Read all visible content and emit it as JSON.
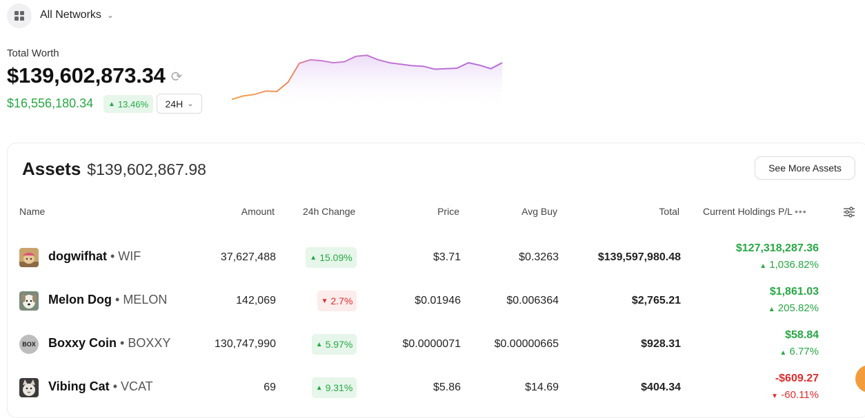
{
  "network": {
    "label": "All Networks"
  },
  "total_worth": {
    "label": "Total Worth",
    "value": "$139,602,873.34",
    "change_value": "$16,556,180.34",
    "change_pct": "13.46%",
    "period": "24H"
  },
  "sparkline": {
    "values": [
      0.05,
      0.12,
      0.15,
      0.22,
      0.21,
      0.4,
      0.78,
      0.85,
      0.83,
      0.79,
      0.81,
      0.92,
      0.94,
      0.85,
      0.79,
      0.76,
      0.73,
      0.72,
      0.66,
      0.67,
      0.68,
      0.79,
      0.74,
      0.67,
      0.79
    ]
  },
  "assets": {
    "title": "Assets",
    "total": "$139,602,867.98",
    "see_more_label": "See More Assets",
    "columns": {
      "name": "Name",
      "amount": "Amount",
      "change": "24h Change",
      "price": "Price",
      "avg_buy": "Avg Buy",
      "total": "Total",
      "pl": "Current Holdings P/L"
    },
    "rows": [
      {
        "name": "dogwifhat",
        "symbol": "WIF",
        "amount": "37,627,488",
        "change": "15.09%",
        "change_dir": "up",
        "price": "$3.71",
        "avg_buy": "$0.3263",
        "total": "$139,597,980.48",
        "pl_value": "$127,318,287.36",
        "pl_pct": "1,036.82%",
        "pl_dir": "up"
      },
      {
        "name": "Melon Dog",
        "symbol": "MELON",
        "amount": "142,069",
        "change": "2.7%",
        "change_dir": "down",
        "price": "$0.01946",
        "avg_buy": "$0.006364",
        "total": "$2,765.21",
        "pl_value": "$1,861.03",
        "pl_pct": "205.82%",
        "pl_dir": "up"
      },
      {
        "name": "Boxxy Coin",
        "symbol": "BOXXY",
        "icon_text": "BOX",
        "amount": "130,747,990",
        "change": "5.97%",
        "change_dir": "up",
        "price": "$0.0000071",
        "avg_buy": "$0.00000665",
        "total": "$928.31",
        "pl_value": "$58.84",
        "pl_pct": "6.77%",
        "pl_dir": "up"
      },
      {
        "name": "Vibing Cat",
        "symbol": "VCAT",
        "amount": "69",
        "change": "9.31%",
        "change_dir": "up",
        "price": "$5.86",
        "avg_buy": "$14.69",
        "total": "$404.34",
        "pl_value": "-$609.27",
        "pl_pct": "-60.11%",
        "pl_dir": "down"
      }
    ]
  },
  "colors": {
    "up": "#27a844",
    "down": "#e02b2b",
    "spark_start": "#f5a04a",
    "spark_end": "#b36ad9"
  }
}
